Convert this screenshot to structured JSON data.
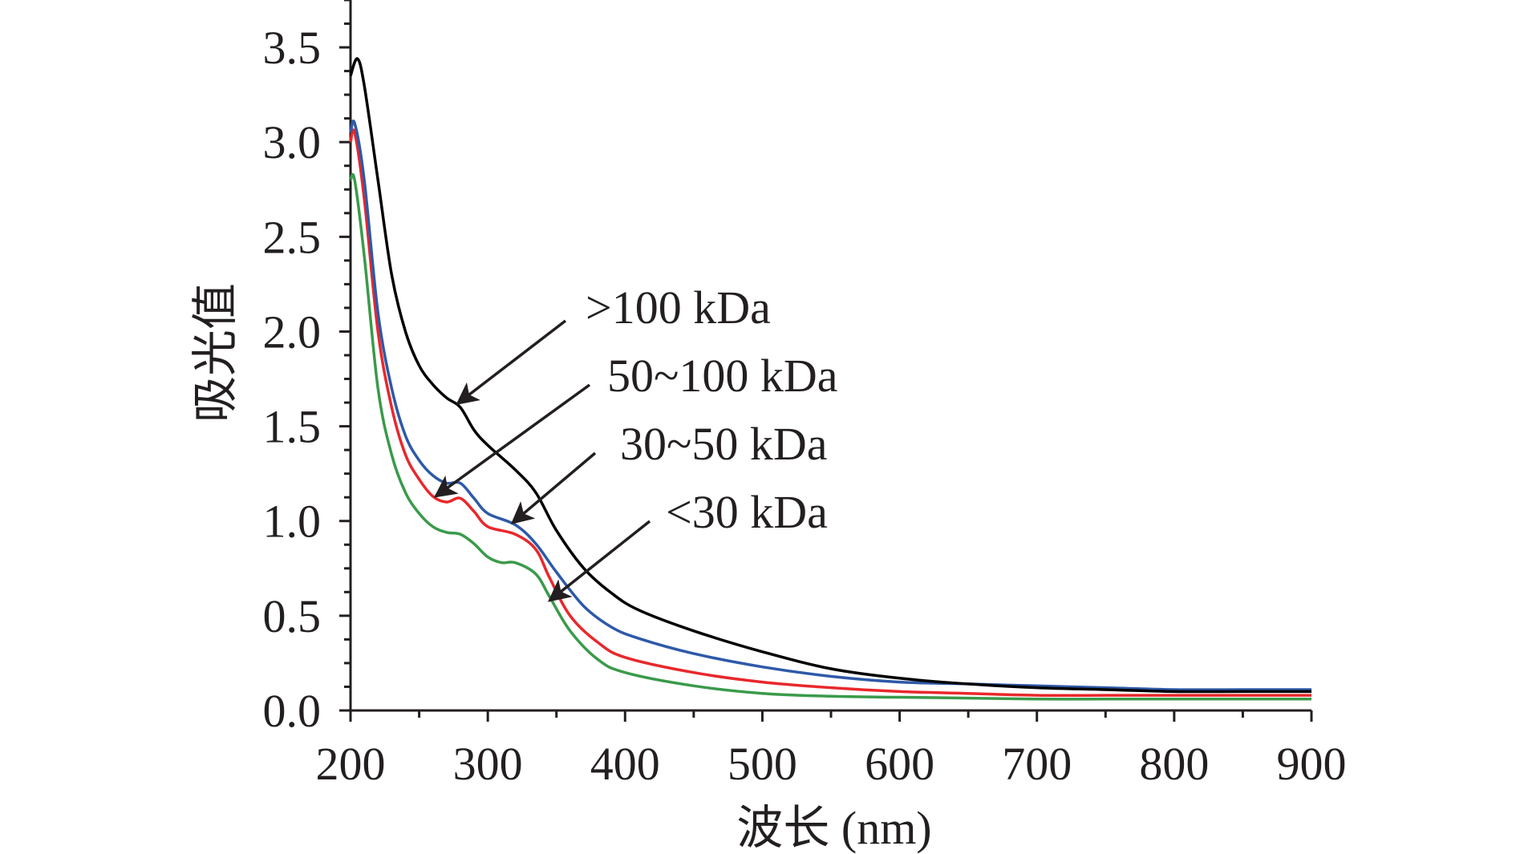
{
  "chart_data": {
    "type": "line",
    "title": "",
    "xlabel": "波长 (nm)",
    "ylabel": "吸光值",
    "xlim": [
      200,
      900
    ],
    "ylim": [
      0,
      3.75
    ],
    "grid": false,
    "legend": "none",
    "x_ticks": [
      "200",
      "300",
      "400",
      "500",
      "600",
      "700",
      "800",
      "900"
    ],
    "y_ticks": [
      "0.0",
      "0.5",
      "1.0",
      "1.5",
      "2.0",
      "2.5",
      "3.0",
      "3.5"
    ],
    "series": [
      {
        "name": ">100 kDa",
        "color": "#000000",
        "x": [
          200,
          205,
          210,
          220,
          230,
          240,
          250,
          260,
          270,
          280,
          290,
          300,
          320,
          335,
          350,
          370,
          390,
          410,
          450,
          500,
          550,
          600,
          650,
          700,
          750,
          800,
          850,
          900
        ],
        "y": [
          3.35,
          3.44,
          3.3,
          2.8,
          2.3,
          2.0,
          1.82,
          1.72,
          1.65,
          1.6,
          1.48,
          1.4,
          1.27,
          1.15,
          0.95,
          0.75,
          0.62,
          0.53,
          0.42,
          0.31,
          0.22,
          0.17,
          0.14,
          0.12,
          0.11,
          0.1,
          0.1,
          0.1
        ]
      },
      {
        "name": "50~100 kDa",
        "color": "#2e59a8",
        "x": [
          200,
          203,
          210,
          220,
          230,
          240,
          250,
          260,
          270,
          280,
          290,
          300,
          320,
          335,
          350,
          370,
          390,
          410,
          450,
          500,
          550,
          600,
          650,
          700,
          750,
          800,
          850,
          900
        ],
        "y": [
          3.05,
          3.1,
          2.8,
          2.1,
          1.7,
          1.45,
          1.32,
          1.24,
          1.2,
          1.2,
          1.12,
          1.04,
          0.98,
          0.88,
          0.73,
          0.55,
          0.44,
          0.38,
          0.3,
          0.23,
          0.18,
          0.15,
          0.14,
          0.13,
          0.12,
          0.11,
          0.11,
          0.11
        ]
      },
      {
        "name": "30~50 kDa",
        "color": "#e8282c",
        "x": [
          200,
          203,
          210,
          220,
          230,
          240,
          250,
          260,
          270,
          280,
          290,
          300,
          320,
          335,
          345,
          360,
          380,
          400,
          450,
          500,
          550,
          600,
          650,
          700,
          750,
          800,
          850,
          900
        ],
        "y": [
          3.0,
          3.05,
          2.7,
          2.0,
          1.6,
          1.35,
          1.22,
          1.13,
          1.1,
          1.12,
          1.05,
          0.97,
          0.93,
          0.85,
          0.7,
          0.5,
          0.36,
          0.28,
          0.2,
          0.15,
          0.12,
          0.1,
          0.09,
          0.08,
          0.08,
          0.08,
          0.08,
          0.08
        ]
      },
      {
        "name": "<30 kDa",
        "color": "#3a9a4a",
        "x": [
          200,
          203,
          210,
          220,
          230,
          240,
          250,
          260,
          270,
          280,
          290,
          300,
          310,
          320,
          335,
          345,
          360,
          380,
          400,
          450,
          500,
          550,
          600,
          650,
          700,
          750,
          800,
          850,
          900
        ],
        "y": [
          2.8,
          2.8,
          2.4,
          1.7,
          1.35,
          1.15,
          1.04,
          0.97,
          0.94,
          0.93,
          0.88,
          0.81,
          0.78,
          0.78,
          0.72,
          0.6,
          0.42,
          0.27,
          0.2,
          0.13,
          0.09,
          0.075,
          0.07,
          0.065,
          0.06,
          0.06,
          0.06,
          0.06,
          0.06
        ]
      }
    ],
    "annotations": [
      {
        "text": ">100 kDa",
        "series": 0,
        "target_x": 278,
        "target_y": 1.62
      },
      {
        "text": "50~100 kDa",
        "series": 1,
        "target_x": 262,
        "target_y": 1.13
      },
      {
        "text": "30~50 kDa",
        "series": 2,
        "target_x": 318,
        "target_y": 0.99
      },
      {
        "text": "<30 kDa",
        "series": 3,
        "target_x": 345,
        "target_y": 0.58
      }
    ]
  }
}
